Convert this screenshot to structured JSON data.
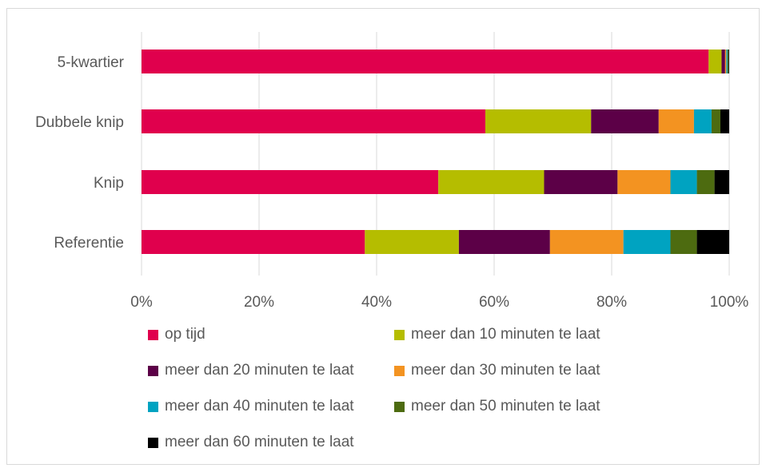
{
  "chart_data": {
    "type": "bar",
    "orientation": "horizontal",
    "stacked": "percent",
    "categories": [
      "5-kwartier",
      "Dubbele knip",
      "Knip",
      "Referentie"
    ],
    "series": [
      {
        "name": "op tijd",
        "color": "#e0004d",
        "values": [
          96.5,
          58.5,
          50.5,
          38
        ]
      },
      {
        "name": "meer dan 10 minuten te laat",
        "color": "#b5bd00",
        "values": [
          2.2,
          18.0,
          18.0,
          16
        ]
      },
      {
        "name": "meer dan 20 minuten te laat",
        "color": "#5c0047",
        "values": [
          0.6,
          11.5,
          12.5,
          15.5
        ]
      },
      {
        "name": "meer dan 30 minuten te laat",
        "color": "#f39321",
        "values": [
          0.2,
          6.0,
          9.0,
          12.5
        ]
      },
      {
        "name": "meer dan 40 minuten te laat",
        "color": "#00a3c1",
        "values": [
          0.2,
          3.0,
          4.5,
          8
        ]
      },
      {
        "name": "meer dan 50 minuten te laat",
        "color": "#4d6b10",
        "values": [
          0.2,
          1.5,
          3.0,
          4.5
        ]
      },
      {
        "name": "meer dan 60 minuten te laat",
        "color": "#000000",
        "values": [
          0.1,
          1.5,
          2.5,
          5.5
        ]
      }
    ],
    "x_ticks": [
      "0%",
      "20%",
      "40%",
      "60%",
      "80%",
      "100%"
    ],
    "xlim": [
      0,
      100
    ],
    "grid": true,
    "legend_position": "bottom"
  }
}
